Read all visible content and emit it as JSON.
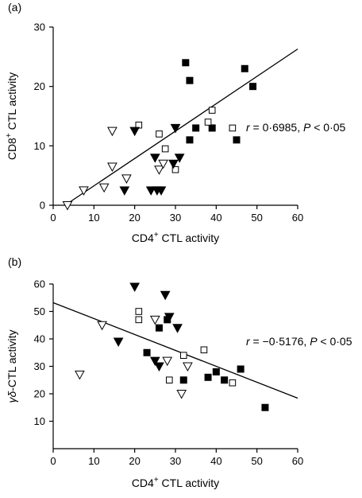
{
  "chart_data": [
    {
      "type": "scatter",
      "panel_label": "(a)",
      "xlabel_prefix": "CD4",
      "xlabel_sup": "+",
      "xlabel_suffix": " CTL activity",
      "ylabel_prefix": "CD8",
      "ylabel_sup": "+",
      "ylabel_suffix": " CTL activity",
      "xlim": [
        0,
        60
      ],
      "ylim": [
        0,
        30
      ],
      "xticks": [
        0,
        10,
        20,
        30,
        40,
        50,
        60
      ],
      "yticks": [
        0,
        10,
        20,
        30
      ],
      "annotation": {
        "r_label": "r",
        "r_text": " = 0·6985, ",
        "p_label": "P",
        "p_text": " < 0·05"
      },
      "regression_line": {
        "x": [
          4,
          60
        ],
        "y": [
          0.5,
          26.3
        ]
      },
      "series": [
        {
          "marker": "filled-square",
          "x": [
            32.5,
            33.5,
            35,
            33.5,
            39,
            45,
            47,
            49
          ],
          "y": [
            24,
            21,
            13,
            11,
            13,
            11,
            23,
            20
          ]
        },
        {
          "marker": "open-square",
          "x": [
            21,
            26,
            27.5,
            30,
            38,
            39,
            44
          ],
          "y": [
            13.5,
            12,
            9.5,
            6,
            14,
            16,
            13
          ]
        },
        {
          "marker": "filled-triangle",
          "x": [
            17.5,
            20,
            24,
            25,
            25.5,
            26.5,
            29.5,
            30,
            31
          ],
          "y": [
            2.5,
            12.5,
            2.5,
            8,
            2.5,
            2.5,
            7,
            13,
            8
          ]
        },
        {
          "marker": "open-triangle",
          "x": [
            3.5,
            7.5,
            12.5,
            14.5,
            14.5,
            18,
            26,
            27
          ],
          "y": [
            0,
            2.5,
            3,
            6.5,
            12.5,
            4.5,
            6,
            7
          ]
        }
      ]
    },
    {
      "type": "scatter",
      "panel_label": "(b)",
      "xlabel_prefix": "CD4",
      "xlabel_sup": "+",
      "xlabel_suffix": " CTL activity",
      "ylabel_prefix": "γδ",
      "ylabel_sup": "",
      "ylabel_suffix": "-CTL activity",
      "xlim": [
        0,
        60
      ],
      "ylim": [
        0,
        60
      ],
      "xticks": [
        0,
        10,
        20,
        30,
        40,
        50,
        60
      ],
      "yticks": [
        10,
        20,
        30,
        40,
        50,
        60
      ],
      "annotation": {
        "r_label": "r",
        "r_text": " = −0·5176, ",
        "p_label": "P",
        "p_text": " < 0·05"
      },
      "regression_line": {
        "x": [
          0,
          60
        ],
        "y": [
          53.2,
          18.4
        ]
      },
      "series": [
        {
          "marker": "filled-square",
          "x": [
            23,
            26,
            28,
            32,
            38,
            40,
            42,
            46,
            52
          ],
          "y": [
            35,
            44,
            47,
            25,
            26,
            28,
            25,
            29,
            15
          ]
        },
        {
          "marker": "open-square",
          "x": [
            21,
            21,
            28.5,
            32,
            37,
            44
          ],
          "y": [
            50,
            47,
            25,
            34,
            36,
            24
          ]
        },
        {
          "marker": "filled-triangle",
          "x": [
            16,
            20,
            25,
            26,
            27.5,
            28.5,
            30.5
          ],
          "y": [
            39,
            59,
            32,
            30,
            56,
            48,
            44
          ]
        },
        {
          "marker": "open-triangle",
          "x": [
            6.5,
            12,
            25,
            28,
            31.5,
            33
          ],
          "y": [
            27,
            45,
            47,
            32,
            20,
            30
          ]
        }
      ]
    }
  ]
}
